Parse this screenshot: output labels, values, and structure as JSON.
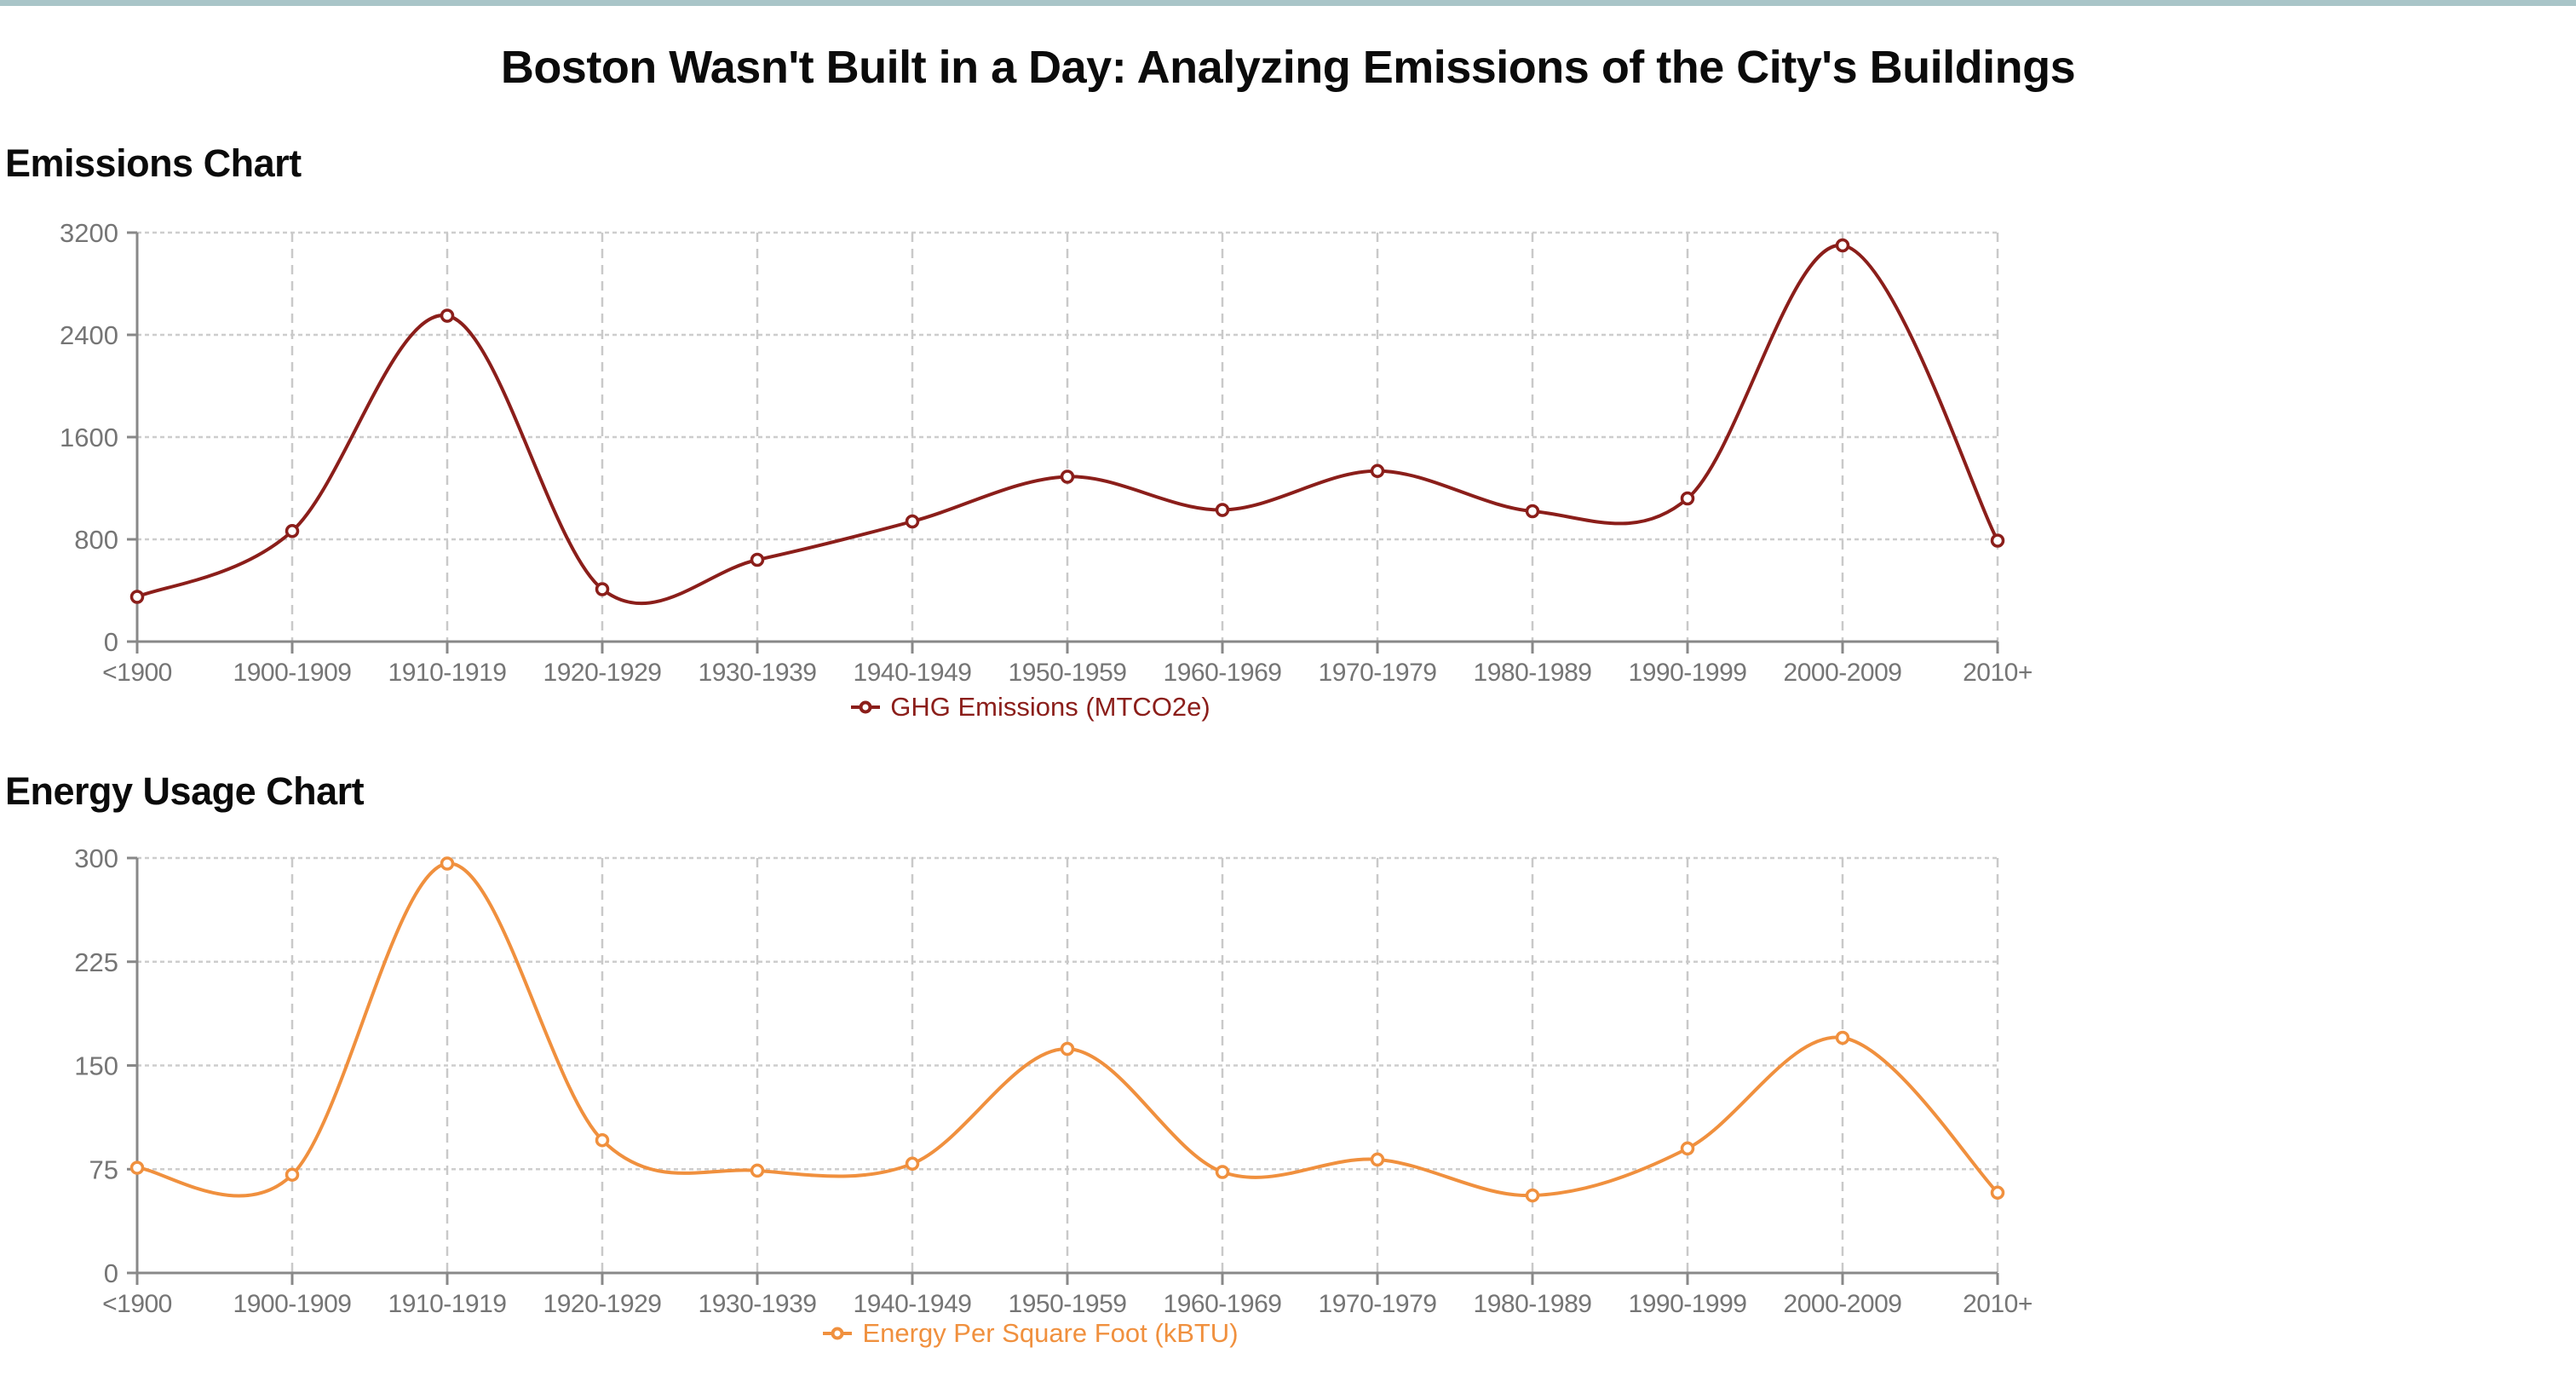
{
  "page": {
    "title": "Boston Wasn't Built in a Day: Analyzing Emissions of the City's Buildings",
    "top_bar_color": "#a9c5c8"
  },
  "chart_data": [
    {
      "type": "line",
      "title": "Emissions Chart",
      "legend": "GHG Emissions (MTCO2e)",
      "legend_position": "bottom",
      "color": "#8b1e1a",
      "marker": "open-circle",
      "grid": "dashed",
      "categories": [
        "<1900",
        "1900-1909",
        "1910-1919",
        "1920-1929",
        "1930-1939",
        "1940-1949",
        "1950-1959",
        "1960-1969",
        "1970-1979",
        "1980-1989",
        "1990-1999",
        "2000-2009",
        "2010+"
      ],
      "values": [
        350,
        865,
        2550,
        410,
        640,
        940,
        1290,
        1030,
        1335,
        1020,
        1120,
        3100,
        790
      ],
      "xlabel": "",
      "ylabel": "",
      "ylim": [
        0,
        3200
      ],
      "yticks": [
        0,
        800,
        1600,
        2400,
        3200
      ]
    },
    {
      "type": "line",
      "title": "Energy Usage Chart",
      "legend": "Energy Per Square Foot (kBTU)",
      "legend_position": "bottom",
      "color": "#f0903e",
      "marker": "open-circle",
      "grid": "dashed",
      "categories": [
        "<1900",
        "1900-1909",
        "1910-1919",
        "1920-1929",
        "1930-1939",
        "1940-1949",
        "1950-1959",
        "1960-1969",
        "1970-1979",
        "1980-1989",
        "1990-1999",
        "2000-2009",
        "2010+"
      ],
      "values": [
        76,
        71,
        296,
        96,
        74,
        79,
        162,
        73,
        82,
        56,
        90,
        170,
        58
      ],
      "xlabel": "",
      "ylabel": "",
      "ylim": [
        0,
        300
      ],
      "yticks": [
        0,
        75,
        150,
        225,
        300
      ]
    }
  ]
}
